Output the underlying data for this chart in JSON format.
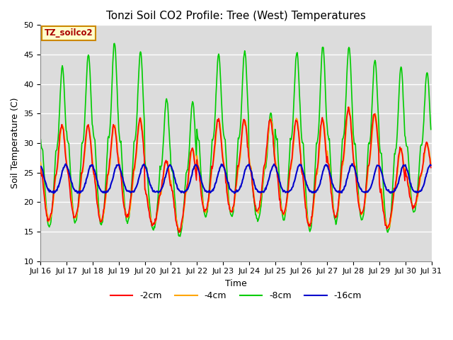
{
  "title": "Tonzi Soil CO2 Profile: Tree (West) Temperatures",
  "xlabel": "Time",
  "ylabel": "Soil Temperature (C)",
  "ylim": [
    10,
    50
  ],
  "xlim_days": [
    0,
    15
  ],
  "x_tick_labels": [
    "Jul 16",
    "Jul 17",
    "Jul 18",
    "Jul 19",
    "Jul 20",
    "Jul 21",
    "Jul 22",
    "Jul 23",
    "Jul 24",
    "Jul 25",
    "Jul 26",
    "Jul 27",
    "Jul 28",
    "Jul 29",
    "Jul 30",
    "Jul 31"
  ],
  "series": {
    "-2cm": {
      "color": "#ff0000",
      "lw": 1.2,
      "zorder": 4
    },
    "-4cm": {
      "color": "#ffa500",
      "lw": 1.2,
      "zorder": 3
    },
    "-8cm": {
      "color": "#00cc00",
      "lw": 1.2,
      "zorder": 2
    },
    "-16cm": {
      "color": "#0000cc",
      "lw": 1.5,
      "zorder": 5
    }
  },
  "legend_label": "TZ_soilco2",
  "bg_color": "#dcdcdc",
  "title_fontsize": 11,
  "axis_label_fontsize": 9,
  "tick_fontsize": 8
}
